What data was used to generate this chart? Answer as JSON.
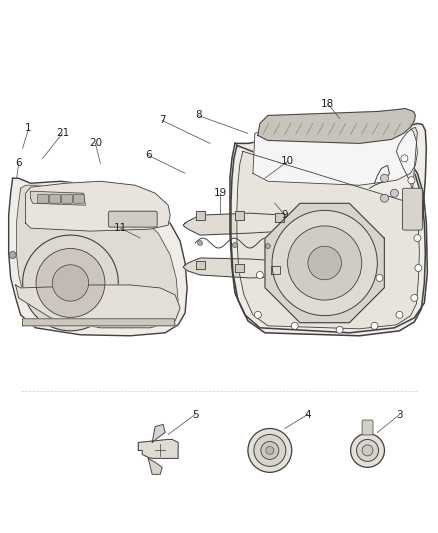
{
  "background_color": "#ffffff",
  "line_color": "#404040",
  "label_color": "#222222",
  "fig_width": 4.38,
  "fig_height": 5.33,
  "dpi": 100,
  "font_size": 7.5,
  "leader_color": "#555555"
}
